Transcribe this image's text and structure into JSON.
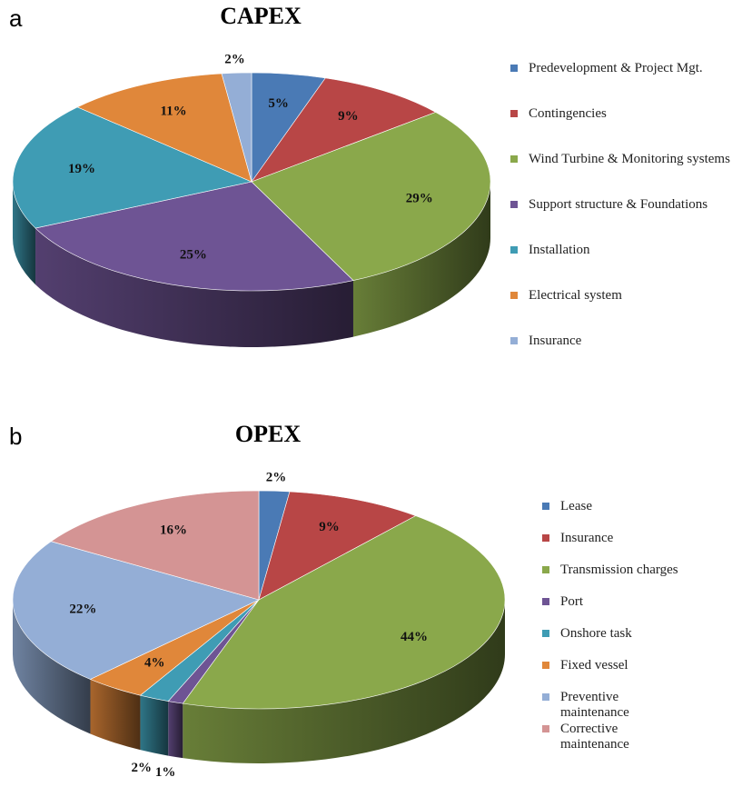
{
  "chart_data": [
    {
      "type": "pie",
      "panel": "a",
      "title": "CAPEX",
      "categories": [
        "Predevelopment & Project Mgt.",
        "Contingencies",
        "Wind Turbine & Monitoring systems",
        "Support structure & Foundations",
        "Installation",
        "Electrical system",
        "Insurance"
      ],
      "values": [
        5,
        9,
        29,
        25,
        19,
        11,
        2
      ],
      "value_labels": [
        "5%",
        "9%",
        "29%",
        "25%",
        "19%",
        "11%",
        "2%"
      ],
      "colors": [
        "#4a7ab5",
        "#b84646",
        "#8aa84b",
        "#6e5494",
        "#3f9cb4",
        "#e0873a",
        "#94aed6"
      ]
    },
    {
      "type": "pie",
      "panel": "b",
      "title": "OPEX",
      "categories": [
        "Lease",
        "Insurance",
        "Transmission charges",
        "Port",
        "Onshore task",
        "Fixed vessel",
        "Preventive maintenance",
        "Corrective maintenance"
      ],
      "values": [
        2,
        9,
        44,
        1,
        2,
        4,
        22,
        16
      ],
      "value_labels": [
        "2%",
        "9%",
        "44%",
        "1%",
        "2%",
        "4%",
        "22%",
        "16%"
      ],
      "colors": [
        "#4a7ab5",
        "#b84646",
        "#8aa84b",
        "#6e5494",
        "#3f9cb4",
        "#e0873a",
        "#94aed6",
        "#d49494"
      ]
    }
  ]
}
